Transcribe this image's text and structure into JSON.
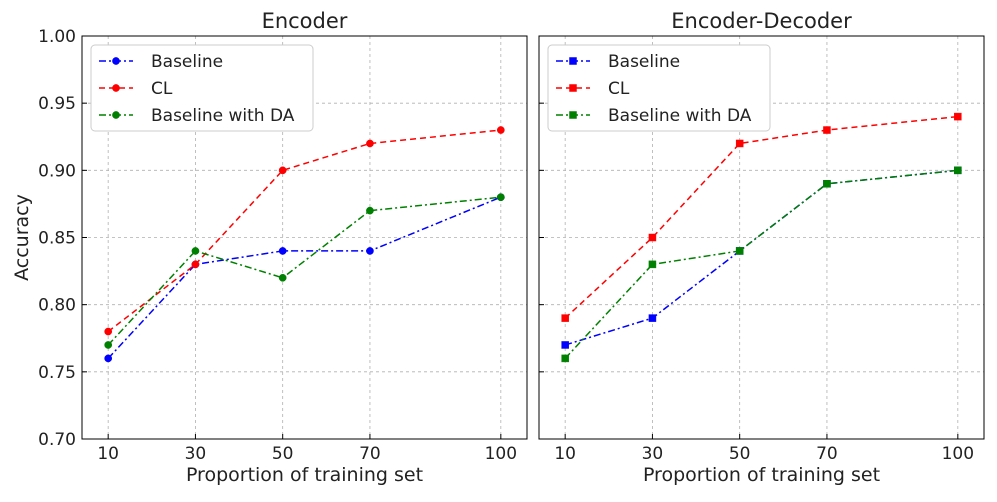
{
  "chart_data": [
    {
      "type": "line",
      "title": "Encoder",
      "xlabel": "Proportion of training set",
      "ylabel": "Accuracy",
      "x": [
        10,
        30,
        50,
        70,
        100
      ],
      "xticks": [
        "10",
        "30",
        "50",
        "70",
        "100"
      ],
      "ylim": [
        0.7,
        1.0
      ],
      "yticks": [
        "0.70",
        "0.75",
        "0.80",
        "0.85",
        "0.90",
        "0.95",
        "1.00"
      ],
      "grid": true,
      "legend_position": "top-left",
      "marker": "circle",
      "series": [
        {
          "name": "Baseline",
          "color": "#0000ff",
          "linestyle": "dashdot",
          "values": [
            0.76,
            0.83,
            0.84,
            0.84,
            0.88
          ]
        },
        {
          "name": "CL",
          "color": "#ff0000",
          "linestyle": "dashed",
          "values": [
            0.78,
            0.83,
            0.9,
            0.92,
            0.93
          ]
        },
        {
          "name": "Baseline with DA",
          "color": "#008000",
          "linestyle": "dashdot",
          "values": [
            0.77,
            0.84,
            0.82,
            0.87,
            0.88
          ]
        }
      ]
    },
    {
      "type": "line",
      "title": "Encoder-Decoder",
      "xlabel": "Proportion of training set",
      "ylabel": "",
      "x": [
        10,
        30,
        50,
        70,
        100
      ],
      "xticks": [
        "10",
        "30",
        "50",
        "70",
        "100"
      ],
      "ylim": [
        0.7,
        1.0
      ],
      "yticks": [],
      "grid": true,
      "legend_position": "top-left",
      "marker": "square",
      "series": [
        {
          "name": "Baseline",
          "color": "#0000ff",
          "linestyle": "dashdot",
          "values": [
            0.77,
            0.79,
            0.84,
            0.89,
            0.9
          ]
        },
        {
          "name": "CL",
          "color": "#ff0000",
          "linestyle": "dashed",
          "values": [
            0.79,
            0.85,
            0.92,
            0.93,
            0.94
          ]
        },
        {
          "name": "Baseline with DA",
          "color": "#008000",
          "linestyle": "dashdot",
          "values": [
            0.76,
            0.83,
            0.84,
            0.89,
            0.9
          ]
        }
      ]
    }
  ]
}
